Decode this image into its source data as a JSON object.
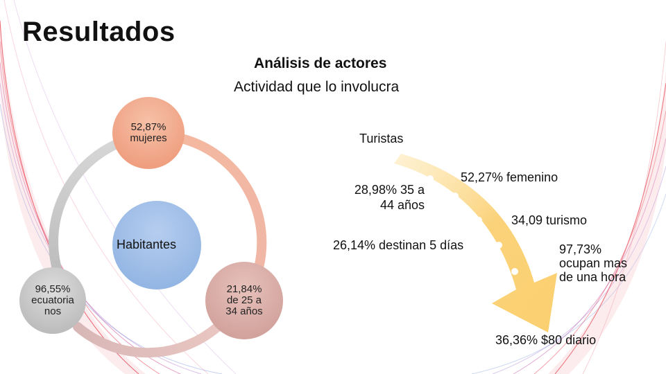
{
  "slide": {
    "title": "Resultados",
    "subtitle": "Análisis de actores",
    "subtitle2": "Actividad que lo involucra"
  },
  "habitantes": {
    "center_label": "Habitantes",
    "nodes": [
      {
        "line1": "52,87%",
        "line2": "mujeres",
        "color": "#f2a98c"
      },
      {
        "line1": "96,55%",
        "line2": "ecuatoria",
        "line3": "nos",
        "color": "#c6c6c6"
      },
      {
        "line1": "21,84%",
        "line2": "de 25 a",
        "line3": "34 años",
        "color": "#d9ada7"
      }
    ],
    "center_color": "#9dbde6"
  },
  "turistas": {
    "title": "Turistas",
    "arrow_color": "#fbd37a",
    "items": [
      {
        "text": "52,27% femenino"
      },
      {
        "line1": "28,98% 35 a",
        "line2": "44 años"
      },
      {
        "text": "34,09 turismo"
      },
      {
        "text": "26,14% destinan 5 días"
      },
      {
        "line1": "97,73%",
        "line2": "ocupan mas",
        "line3": "de una hora"
      },
      {
        "text": "36,36% $80 diario"
      }
    ]
  }
}
